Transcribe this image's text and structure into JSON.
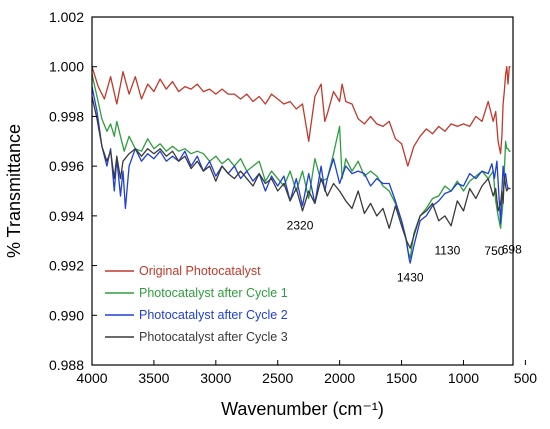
{
  "chart_data": {
    "type": "line",
    "xlabel": "Wavenumber (cm⁻¹)",
    "ylabel": "% Transmittance",
    "xlim": [
      4000,
      600
    ],
    "ylim": [
      0.988,
      1.002
    ],
    "x_reversed": true,
    "grid": false,
    "legend_position": "bottom-left",
    "xticks": [
      4000,
      3500,
      3000,
      2500,
      2000,
      1500,
      1000,
      500
    ],
    "xtick_labels": [
      "4000",
      "3500",
      "3000",
      "2500",
      "2000",
      "1500",
      "1000",
      "500"
    ],
    "yticks": [
      0.988,
      0.99,
      0.992,
      0.994,
      0.996,
      0.998,
      1.0,
      1.002
    ],
    "ytick_labels": [
      "0.988",
      "0.990",
      "0.992",
      "0.994",
      "0.996",
      "0.998",
      "1.000",
      "1.002"
    ],
    "series": [
      {
        "name": "Original Photocatalyst",
        "color": "#c0392b",
        "x": [
          4000,
          3950,
          3900,
          3850,
          3800,
          3750,
          3700,
          3650,
          3600,
          3550,
          3500,
          3450,
          3400,
          3350,
          3300,
          3250,
          3200,
          3150,
          3100,
          3050,
          3000,
          2950,
          2900,
          2850,
          2800,
          2750,
          2700,
          2650,
          2600,
          2550,
          2500,
          2450,
          2400,
          2350,
          2300,
          2250,
          2200,
          2150,
          2120,
          2100,
          2050,
          2000,
          1980,
          1950,
          1900,
          1850,
          1800,
          1750,
          1700,
          1650,
          1600,
          1550,
          1500,
          1450,
          1400,
          1350,
          1300,
          1250,
          1200,
          1150,
          1100,
          1050,
          1000,
          950,
          900,
          850,
          800,
          760,
          740,
          720,
          700,
          690,
          680,
          670,
          660,
          650,
          640,
          630,
          620
        ],
        "y": [
          1.0,
          0.9992,
          0.9987,
          0.9996,
          0.9985,
          0.9998,
          0.9989,
          0.9996,
          0.9987,
          0.9993,
          0.999,
          0.9995,
          0.9991,
          0.9994,
          0.999,
          0.9992,
          0.9991,
          0.9993,
          0.999,
          0.9991,
          0.9989,
          0.9991,
          0.9989,
          0.9989,
          0.9987,
          0.9989,
          0.9986,
          0.9988,
          0.9985,
          0.9989,
          0.9987,
          0.9985,
          0.9986,
          0.9983,
          0.9985,
          0.997,
          0.9988,
          0.9993,
          0.9978,
          0.9981,
          0.999,
          0.9986,
          0.9993,
          0.9986,
          0.9985,
          0.9979,
          0.9977,
          0.998,
          0.9977,
          0.9976,
          0.9978,
          0.9971,
          0.9969,
          0.996,
          0.9968,
          0.9972,
          0.9975,
          0.9973,
          0.9976,
          0.9974,
          0.9977,
          0.9976,
          0.9977,
          0.9976,
          0.998,
          0.9978,
          0.9986,
          0.9978,
          0.9982,
          0.997,
          0.9965,
          0.9972,
          0.9985,
          0.999,
          0.9997,
          1.0,
          0.9993,
          1.0,
          1.0
        ]
      },
      {
        "name": "Photocatalyst after Cycle 1",
        "color": "#2e9e3e",
        "x": [
          4000,
          3960,
          3920,
          3880,
          3850,
          3820,
          3800,
          3760,
          3740,
          3700,
          3650,
          3600,
          3550,
          3500,
          3450,
          3400,
          3350,
          3300,
          3250,
          3200,
          3150,
          3100,
          3050,
          3000,
          2950,
          2900,
          2850,
          2800,
          2750,
          2700,
          2650,
          2600,
          2550,
          2500,
          2450,
          2400,
          2350,
          2300,
          2250,
          2200,
          2150,
          2100,
          2050,
          2000,
          1980,
          1950,
          1900,
          1850,
          1800,
          1750,
          1700,
          1650,
          1600,
          1550,
          1500,
          1470,
          1450,
          1430,
          1400,
          1350,
          1300,
          1250,
          1200,
          1150,
          1100,
          1050,
          1000,
          950,
          900,
          850,
          800,
          760,
          740,
          720,
          700,
          680,
          660,
          650,
          640,
          630,
          620
        ],
        "y": [
          0.9997,
          0.9988,
          0.9979,
          0.9974,
          0.9977,
          0.9972,
          0.9978,
          0.997,
          0.9966,
          0.9972,
          0.9967,
          0.9966,
          0.9971,
          0.9967,
          0.9969,
          0.9966,
          0.9968,
          0.9966,
          0.9967,
          0.9965,
          0.9966,
          0.9965,
          0.9962,
          0.9964,
          0.9961,
          0.9963,
          0.996,
          0.9963,
          0.9958,
          0.996,
          0.9962,
          0.9954,
          0.9958,
          0.9955,
          0.9952,
          0.9958,
          0.995,
          0.9958,
          0.9947,
          0.9963,
          0.9954,
          0.9955,
          0.9965,
          0.9976,
          0.9955,
          0.9963,
          0.9958,
          0.9962,
          0.9956,
          0.9958,
          0.9956,
          0.9952,
          0.995,
          0.9945,
          0.9938,
          0.9932,
          0.9926,
          0.9923,
          0.9933,
          0.994,
          0.9943,
          0.9947,
          0.9948,
          0.9952,
          0.995,
          0.9954,
          0.995,
          0.9954,
          0.9956,
          0.9958,
          0.9955,
          0.9958,
          0.9946,
          0.994,
          0.9935,
          0.9946,
          0.997,
          0.9967,
          0.9967,
          0.9966,
          0.9966
        ]
      },
      {
        "name": "Photocatalyst after Cycle 2",
        "color": "#1f3fd6",
        "x": [
          4000,
          3960,
          3920,
          3880,
          3850,
          3820,
          3800,
          3770,
          3750,
          3730,
          3700,
          3650,
          3600,
          3550,
          3500,
          3450,
          3400,
          3350,
          3300,
          3250,
          3200,
          3150,
          3100,
          3050,
          3000,
          2950,
          2900,
          2850,
          2800,
          2750,
          2700,
          2650,
          2600,
          2550,
          2500,
          2450,
          2400,
          2350,
          2300,
          2250,
          2200,
          2150,
          2120,
          2100,
          2050,
          2000,
          1980,
          1950,
          1900,
          1850,
          1800,
          1750,
          1700,
          1650,
          1600,
          1550,
          1500,
          1460,
          1440,
          1430,
          1400,
          1350,
          1300,
          1250,
          1200,
          1150,
          1100,
          1050,
          1000,
          950,
          900,
          850,
          800,
          770,
          750,
          730,
          710,
          700,
          690,
          680,
          670,
          660,
          650,
          640,
          630,
          620
        ],
        "y": [
          0.9992,
          0.9982,
          0.9968,
          0.996,
          0.9967,
          0.995,
          0.9963,
          0.9948,
          0.9958,
          0.9943,
          0.996,
          0.9967,
          0.9962,
          0.9965,
          0.9963,
          0.9966,
          0.9962,
          0.9964,
          0.9962,
          0.9966,
          0.996,
          0.9964,
          0.9958,
          0.9962,
          0.9956,
          0.996,
          0.9957,
          0.996,
          0.9955,
          0.9958,
          0.9954,
          0.9957,
          0.995,
          0.9956,
          0.9952,
          0.9956,
          0.9946,
          0.9955,
          0.9944,
          0.9957,
          0.9945,
          0.996,
          0.995,
          0.9955,
          0.9963,
          0.9953,
          0.9956,
          0.996,
          0.9957,
          0.9958,
          0.9957,
          0.9952,
          0.9955,
          0.9953,
          0.9953,
          0.9946,
          0.9938,
          0.993,
          0.9923,
          0.9921,
          0.9928,
          0.9938,
          0.994,
          0.9944,
          0.9946,
          0.9949,
          0.995,
          0.9953,
          0.9952,
          0.9957,
          0.9955,
          0.9958,
          0.9957,
          0.9961,
          0.9955,
          0.9962,
          0.9945,
          0.9937,
          0.995,
          0.996,
          0.9955,
          0.9957,
          0.9953,
          0.9951,
          0.9951,
          0.9951
        ]
      },
      {
        "name": "Photocatalyst after Cycle 3",
        "color": "#3a3a3a",
        "x": [
          4000,
          3960,
          3920,
          3880,
          3850,
          3820,
          3800,
          3770,
          3750,
          3700,
          3650,
          3600,
          3550,
          3500,
          3450,
          3400,
          3350,
          3300,
          3250,
          3200,
          3150,
          3100,
          3050,
          3000,
          2950,
          2900,
          2850,
          2800,
          2750,
          2700,
          2650,
          2600,
          2550,
          2500,
          2450,
          2400,
          2350,
          2300,
          2250,
          2200,
          2150,
          2100,
          2050,
          2000,
          1950,
          1900,
          1850,
          1800,
          1750,
          1700,
          1650,
          1600,
          1550,
          1500,
          1460,
          1430,
          1400,
          1350,
          1300,
          1250,
          1200,
          1150,
          1100,
          1050,
          1000,
          950,
          900,
          850,
          800,
          760,
          740,
          720,
          700,
          690,
          680,
          670,
          660,
          650,
          640,
          630,
          620
        ],
        "y": [
          0.9988,
          0.9979,
          0.9968,
          0.9962,
          0.9966,
          0.9955,
          0.9964,
          0.9955,
          0.9962,
          0.9965,
          0.9967,
          0.9964,
          0.9967,
          0.9965,
          0.9967,
          0.9964,
          0.9966,
          0.9962,
          0.9964,
          0.9959,
          0.9962,
          0.9958,
          0.996,
          0.9954,
          0.996,
          0.9957,
          0.9955,
          0.9958,
          0.9955,
          0.9952,
          0.9957,
          0.9953,
          0.9955,
          0.995,
          0.9953,
          0.9946,
          0.9951,
          0.9942,
          0.995,
          0.9945,
          0.9955,
          0.9948,
          0.9953,
          0.995,
          0.9946,
          0.9943,
          0.995,
          0.9941,
          0.9945,
          0.994,
          0.9943,
          0.9935,
          0.9944,
          0.9936,
          0.993,
          0.9927,
          0.9932,
          0.994,
          0.9942,
          0.9945,
          0.9938,
          0.994,
          0.9936,
          0.9946,
          0.9942,
          0.9951,
          0.9947,
          0.9952,
          0.9955,
          0.9948,
          0.9951,
          0.9942,
          0.9945,
          0.995,
          0.9945,
          0.9956,
          0.9952,
          0.995,
          0.9951,
          0.9951,
          0.9951
        ]
      }
    ],
    "annotations": [
      {
        "text": "2320",
        "x": 2320,
        "y": 0.99345
      },
      {
        "text": "1430",
        "x": 1430,
        "y": 0.99135
      },
      {
        "text": "1130",
        "x": 1130,
        "y": 0.99245
      },
      {
        "text": "750",
        "x": 750,
        "y": 0.99243
      },
      {
        "text": "698",
        "x": 610,
        "y": 0.99248
      }
    ]
  }
}
